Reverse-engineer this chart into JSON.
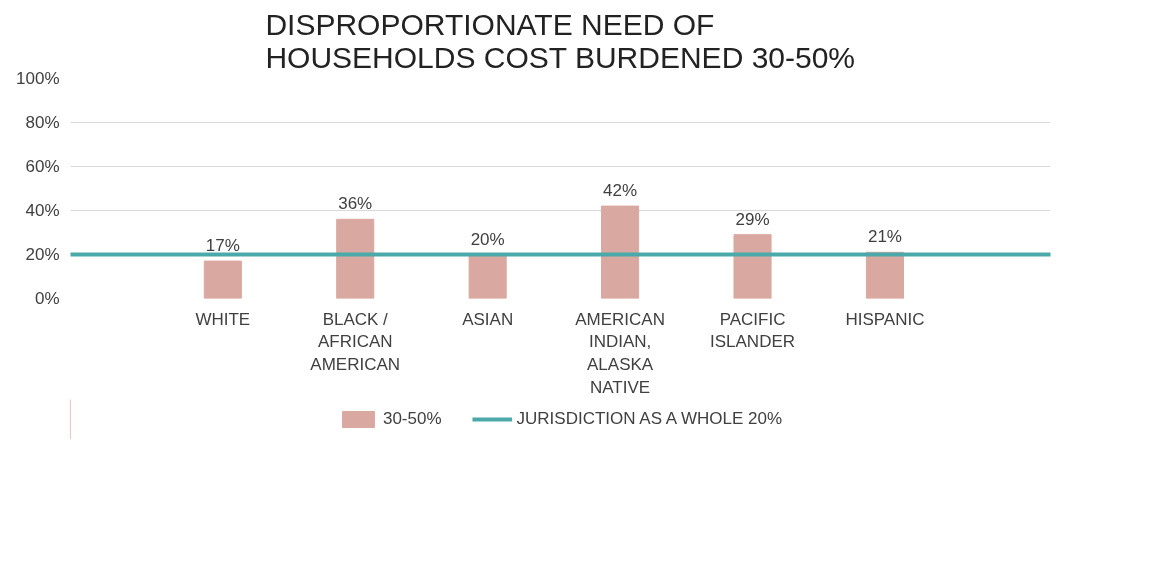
{
  "chart_data": {
    "type": "bar",
    "title": "DISPROPORTIONATE NEED OF HOUSEHOLDS COST BURDENED 30-50%",
    "categories": [
      "WHITE",
      "BLACK / AFRICAN AMERICAN",
      "ASIAN",
      "AMERICAN INDIAN, ALASKA NATIVE",
      "PACIFIC ISLANDER",
      "HISPANIC"
    ],
    "series": [
      {
        "name": "30-50%",
        "color": "#d9a8a1",
        "values": [
          17,
          36,
          20,
          42,
          29,
          21
        ],
        "value_labels": [
          "17%",
          "36%",
          "20%",
          "42%",
          "29%",
          "21%"
        ]
      }
    ],
    "ref_lines": [
      {
        "axis": "y",
        "value": 20,
        "label": "JURISDICTION AS A WHOLE 20%",
        "color": "#4ba9aa",
        "line_style": "solid"
      }
    ],
    "ylim": [
      0,
      100
    ],
    "yticks": [
      {
        "value": 0,
        "label": "0%"
      },
      {
        "value": 20,
        "label": "20%"
      },
      {
        "value": 40,
        "label": "40%"
      },
      {
        "value": 60,
        "label": "60%"
      },
      {
        "value": 80,
        "label": "80%"
      },
      {
        "value": 100,
        "label": "100%"
      }
    ],
    "grid": "y",
    "legend": "bottom"
  }
}
